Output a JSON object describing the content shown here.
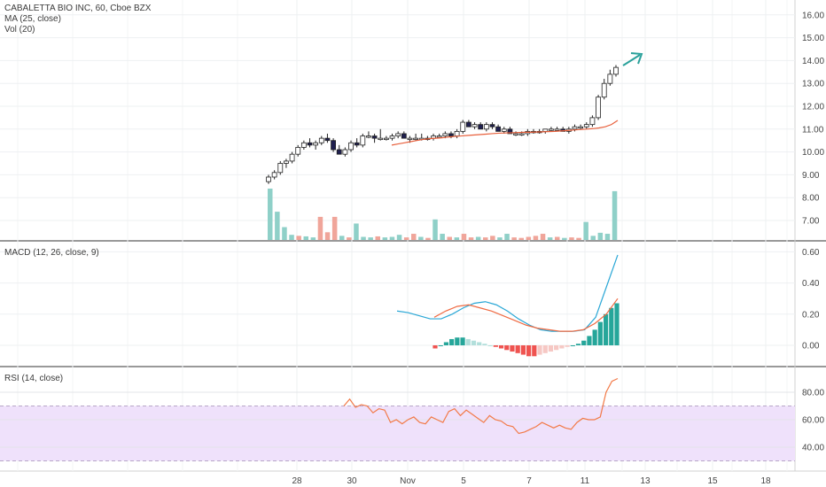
{
  "legend": {
    "symbol": "CABALETTA BIO INC, 60, Cboe BZX",
    "ma": "MA (25, close)",
    "vol": "Vol (20)"
  },
  "macd_label": "MACD (12, 26, close, 9)",
  "rsi_label": "RSI (14, close)",
  "colors": {
    "up_candle": "#ffffff",
    "down_candle": "#1f1f4f",
    "ma": "#e8603c",
    "vol_up": "#8fd0c8",
    "vol_down": "#f0a59a",
    "macd": "#2aa7d6",
    "signal": "#ef6a42",
    "hist_up_strong": "#26a69a",
    "hist_up_weak": "#b2dfdb",
    "hist_down_strong": "#ef5350",
    "hist_down_weak": "#f6c8c4",
    "rsi": "#f27a48",
    "rsi_band": "#efe1fb",
    "arrow": "#2aa19b"
  },
  "chart_data": [
    {
      "type": "candlestick",
      "title": "CABALETTA BIO INC, 60, Cboe BZX",
      "price_axis": [
        "16.00",
        "15.00",
        "14.00",
        "13.00",
        "12.00",
        "11.00",
        "10.00",
        "9.00",
        "8.00",
        "7.00"
      ],
      "x_ticks": [
        "28",
        "30",
        "Nov",
        "5",
        "7",
        "11",
        "13",
        "15",
        "18"
      ],
      "series": [
        {
          "name": "MA (25, close)"
        },
        {
          "name": "Vol (20)"
        }
      ],
      "candles": [
        [
          8.7,
          9.0,
          8.6,
          8.9
        ],
        [
          8.9,
          9.2,
          8.8,
          9.1
        ],
        [
          9.1,
          9.6,
          9.0,
          9.5
        ],
        [
          9.5,
          9.7,
          9.3,
          9.6
        ],
        [
          9.6,
          10.0,
          9.5,
          9.9
        ],
        [
          9.9,
          10.3,
          9.8,
          10.2
        ],
        [
          10.2,
          10.5,
          10.1,
          10.4
        ],
        [
          10.4,
          10.6,
          10.2,
          10.3
        ],
        [
          10.3,
          10.5,
          10.1,
          10.4
        ],
        [
          10.4,
          10.7,
          10.3,
          10.6
        ],
        [
          10.6,
          10.8,
          10.4,
          10.5
        ],
        [
          10.5,
          10.6,
          10.0,
          10.1
        ],
        [
          10.1,
          10.3,
          9.9,
          9.9
        ],
        [
          9.9,
          10.2,
          9.8,
          10.1
        ],
        [
          10.1,
          10.5,
          10.0,
          10.4
        ],
        [
          10.4,
          10.6,
          10.2,
          10.3
        ],
        [
          10.3,
          10.8,
          10.2,
          10.7
        ],
        [
          10.7,
          10.9,
          10.6,
          10.7
        ],
        [
          10.7,
          10.8,
          10.4,
          10.6
        ],
        [
          10.6,
          11.0,
          10.5,
          10.6
        ],
        [
          10.6,
          10.7,
          10.5,
          10.6
        ],
        [
          10.6,
          10.8,
          10.5,
          10.7
        ],
        [
          10.7,
          10.9,
          10.6,
          10.8
        ],
        [
          10.8,
          10.9,
          10.6,
          10.6
        ],
        [
          10.6,
          10.7,
          10.4,
          10.6
        ],
        [
          10.6,
          10.8,
          10.5,
          10.6
        ],
        [
          10.6,
          10.8,
          10.5,
          10.6
        ],
        [
          10.6,
          10.7,
          10.5,
          10.6
        ],
        [
          10.6,
          10.8,
          10.5,
          10.7
        ],
        [
          10.7,
          10.8,
          10.6,
          10.7
        ],
        [
          10.7,
          10.9,
          10.6,
          10.8
        ],
        [
          10.8,
          10.9,
          10.6,
          10.7
        ],
        [
          10.7,
          11.0,
          10.6,
          10.9
        ],
        [
          10.9,
          11.4,
          10.8,
          11.3
        ],
        [
          11.3,
          11.4,
          11.1,
          11.1
        ],
        [
          11.1,
          11.3,
          11.0,
          11.2
        ],
        [
          11.2,
          11.3,
          11.0,
          11.0
        ],
        [
          11.0,
          11.3,
          10.9,
          11.2
        ],
        [
          11.2,
          11.3,
          11.0,
          11.1
        ],
        [
          11.1,
          11.2,
          10.9,
          10.9
        ],
        [
          10.9,
          11.1,
          10.8,
          11.0
        ],
        [
          11.0,
          11.1,
          10.8,
          10.8
        ],
        [
          10.8,
          10.9,
          10.7,
          10.8
        ],
        [
          10.8,
          10.9,
          10.7,
          10.8
        ],
        [
          10.8,
          11.0,
          10.7,
          10.9
        ],
        [
          10.9,
          11.0,
          10.8,
          10.9
        ],
        [
          10.9,
          11.0,
          10.8,
          10.9
        ],
        [
          10.9,
          11.0,
          10.8,
          11.0
        ],
        [
          11.0,
          11.1,
          10.9,
          11.0
        ],
        [
          11.0,
          11.1,
          10.9,
          11.0
        ],
        [
          11.0,
          11.1,
          10.9,
          10.9
        ],
        [
          10.9,
          11.1,
          10.8,
          11.0
        ],
        [
          11.0,
          11.2,
          10.9,
          11.1
        ],
        [
          11.1,
          11.2,
          11.0,
          11.1
        ],
        [
          11.1,
          11.3,
          11.0,
          11.2
        ],
        [
          11.2,
          11.6,
          11.1,
          11.5
        ],
        [
          11.5,
          12.5,
          11.4,
          12.4
        ],
        [
          12.4,
          13.2,
          12.3,
          13.0
        ],
        [
          13.0,
          13.6,
          12.9,
          13.4
        ],
        [
          13.4,
          13.8,
          13.3,
          13.7
        ]
      ],
      "ma_values": [
        10.3,
        10.35,
        10.4,
        10.45,
        10.5,
        10.55,
        10.58,
        10.6,
        10.62,
        10.65,
        10.68,
        10.7,
        10.72,
        10.74,
        10.76,
        10.78,
        10.8,
        10.82,
        10.83,
        10.84,
        10.85,
        10.86,
        10.86,
        10.87,
        10.88,
        10.89,
        10.9,
        10.92,
        10.94,
        10.96,
        10.98,
        11.0,
        11.02,
        11.05,
        11.1,
        11.2,
        11.38
      ],
      "volume": [
        [
          1.0,
          1
        ],
        [
          0.55,
          1
        ],
        [
          0.25,
          1
        ],
        [
          0.1,
          1
        ],
        [
          0.08,
          0
        ],
        [
          0.07,
          1
        ],
        [
          0.05,
          1
        ],
        [
          0.45,
          0
        ],
        [
          0.15,
          0
        ],
        [
          0.45,
          0
        ],
        [
          0.08,
          1
        ],
        [
          0.05,
          0
        ],
        [
          0.32,
          1
        ],
        [
          0.06,
          1
        ],
        [
          0.05,
          1
        ],
        [
          0.07,
          0
        ],
        [
          0.05,
          1
        ],
        [
          0.06,
          1
        ],
        [
          0.1,
          1
        ],
        [
          0.05,
          0
        ],
        [
          0.12,
          0
        ],
        [
          0.06,
          1
        ],
        [
          0.04,
          0
        ],
        [
          0.4,
          1
        ],
        [
          0.12,
          1
        ],
        [
          0.06,
          0
        ],
        [
          0.05,
          1
        ],
        [
          0.12,
          0
        ],
        [
          0.05,
          0
        ],
        [
          0.06,
          1
        ],
        [
          0.05,
          0
        ],
        [
          0.08,
          0
        ],
        [
          0.05,
          1
        ],
        [
          0.12,
          1
        ],
        [
          0.05,
          0
        ],
        [
          0.04,
          0
        ],
        [
          0.06,
          0
        ],
        [
          0.08,
          0
        ],
        [
          0.12,
          0
        ],
        [
          0.05,
          1
        ],
        [
          0.06,
          0
        ],
        [
          0.04,
          1
        ],
        [
          0.05,
          0
        ],
        [
          0.04,
          0
        ],
        [
          0.35,
          1
        ],
        [
          0.08,
          1
        ],
        [
          0.14,
          1
        ],
        [
          0.12,
          1
        ],
        [
          0.95,
          1
        ]
      ],
      "volume_x_start_index": 0
    },
    {
      "type": "line",
      "title": "MACD (12, 26, close, 9)",
      "y_axis": [
        "0.60",
        "0.40",
        "0.20",
        "0.00"
      ],
      "series": [
        {
          "name": "MACD",
          "values": [
            0.22,
            0.21,
            0.19,
            0.17,
            0.17,
            0.2,
            0.24,
            0.27,
            0.28,
            0.26,
            0.22,
            0.17,
            0.13,
            0.1,
            0.09,
            0.09,
            0.09,
            0.1,
            0.18,
            0.38,
            0.58
          ]
        },
        {
          "name": "Signal",
          "values": [
            0.18,
            0.22,
            0.25,
            0.26,
            0.24,
            0.22,
            0.19,
            0.16,
            0.13,
            0.11,
            0.1,
            0.09,
            0.09,
            0.1,
            0.14,
            0.2,
            0.3
          ]
        }
      ],
      "histogram": [
        -0.02,
        0,
        0.02,
        0.04,
        0.05,
        0.05,
        0.04,
        0.03,
        0.02,
        0.01,
        0,
        -0.01,
        -0.02,
        -0.03,
        -0.04,
        -0.05,
        -0.06,
        -0.07,
        -0.07,
        -0.06,
        -0.05,
        -0.04,
        -0.03,
        -0.02,
        -0.01,
        0,
        0.01,
        0.03,
        0.06,
        0.1,
        0.15,
        0.2,
        0.24,
        0.27
      ]
    },
    {
      "type": "line",
      "title": "RSI (14, close)",
      "y_axis": [
        "80.00",
        "60.00",
        "40.00"
      ],
      "series": [
        {
          "name": "RSI",
          "values": [
            70,
            75,
            69,
            71,
            70,
            65,
            68,
            67,
            58,
            60,
            57,
            60,
            62,
            58,
            57,
            62,
            60,
            58,
            66,
            68,
            63,
            67,
            64,
            61,
            58,
            63,
            60,
            59,
            56,
            55,
            50,
            51,
            53,
            55,
            58,
            56,
            54,
            56,
            54,
            53,
            58,
            61,
            60,
            60,
            62,
            80,
            88,
            90
          ]
        }
      ]
    }
  ]
}
